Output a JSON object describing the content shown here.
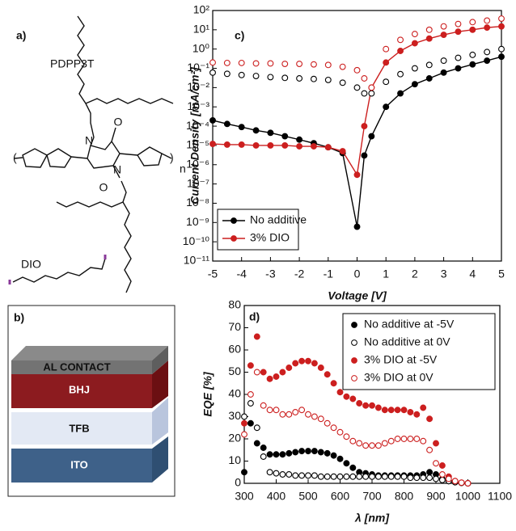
{
  "figure": {
    "panel_a": {
      "label": "a)",
      "name": "PDPP3T",
      "additive": "DIO",
      "atoms": [
        "N",
        "N",
        "O",
        "O",
        "n"
      ]
    },
    "panel_b": {
      "label": "b)",
      "layers": [
        "AL CONTACT",
        "BHJ",
        "TFB",
        "ITO"
      ]
    }
  },
  "chart_data": [
    {
      "type": "line",
      "panel_label": "c)",
      "xlabel": "Voltage [V]",
      "ylabel": "Current Density [mA/cm²]",
      "x": [
        -5,
        -4.5,
        -4,
        -3.5,
        -3,
        -2.5,
        -2,
        -1.5,
        -1,
        -0.5,
        0,
        0.25,
        0.5,
        1,
        1.5,
        2,
        2.5,
        3,
        3.5,
        4,
        4.5,
        5
      ],
      "xlim": [
        -5,
        5
      ],
      "xticks": [
        -5,
        -4,
        -3,
        -2,
        -1,
        0,
        1,
        2,
        3,
        4,
        5
      ],
      "yscale": "log",
      "ylim": [
        1e-11,
        100
      ],
      "yticks": [
        {
          "value": 1e-11,
          "label": "10⁻¹¹"
        },
        {
          "value": 1e-10,
          "label": "10⁻¹⁰"
        },
        {
          "value": 1e-09,
          "label": "10⁻⁹"
        },
        {
          "value": 1e-08,
          "label": "10⁻⁸"
        },
        {
          "value": 1e-07,
          "label": "10⁻⁷"
        },
        {
          "value": 1e-06,
          "label": "10⁻⁶"
        },
        {
          "value": 1e-05,
          "label": "10⁻⁵"
        },
        {
          "value": 0.0001,
          "label": "10⁻⁴"
        },
        {
          "value": 0.001,
          "label": "10⁻³"
        },
        {
          "value": 0.01,
          "label": "10⁻²"
        },
        {
          "value": 0.1,
          "label": "10⁻¹"
        },
        {
          "value": 1,
          "label": "10⁰"
        },
        {
          "value": 10,
          "label": "10¹"
        },
        {
          "value": 100,
          "label": "10²"
        }
      ],
      "legend": "lower left",
      "series": [
        {
          "name": "No additive",
          "color": "#000000",
          "marker": "filled",
          "line": true,
          "values": [
            0.0002,
            0.00013,
            9e-05,
            6e-05,
            4.5e-05,
            3e-05,
            2e-05,
            1.3e-05,
            8e-06,
            4e-06,
            6e-10,
            3e-06,
            3e-05,
            0.001,
            0.005,
            0.015,
            0.03,
            0.06,
            0.1,
            0.16,
            0.25,
            0.4
          ]
        },
        {
          "name": "3% DIO",
          "color": "#cc1f1f",
          "marker": "filled",
          "line": true,
          "values": [
            1.2e-05,
            1.1e-05,
            1.1e-05,
            1e-05,
            1e-05,
            1e-05,
            9e-06,
            9e-06,
            8e-06,
            5e-06,
            3e-07,
            0.0001,
            0.01,
            0.2,
            0.8,
            2,
            3.5,
            5.5,
            8,
            10,
            13,
            15
          ]
        },
        {
          "color": "#000000",
          "marker": "open",
          "values": [
            0.06,
            0.052,
            0.045,
            0.04,
            0.035,
            0.032,
            0.03,
            0.028,
            0.025,
            0.018,
            0.01,
            0.005,
            0.005,
            0.02,
            0.05,
            0.1,
            0.15,
            0.25,
            0.35,
            0.5,
            0.7,
            1
          ]
        },
        {
          "color": "#cc1f1f",
          "marker": "open",
          "values": [
            0.2,
            0.19,
            0.19,
            0.18,
            0.18,
            0.17,
            0.17,
            0.16,
            0.15,
            0.12,
            0.08,
            0.03,
            0.01,
            1,
            3,
            6,
            10,
            15,
            20,
            25,
            30,
            38
          ]
        }
      ]
    },
    {
      "type": "scatter",
      "panel_label": "d)",
      "xlabel": "λ [nm]",
      "ylabel": "EQE [%]",
      "x": [
        300,
        320,
        340,
        360,
        380,
        400,
        420,
        440,
        460,
        480,
        500,
        520,
        540,
        560,
        580,
        600,
        620,
        640,
        660,
        680,
        700,
        720,
        740,
        760,
        780,
        800,
        820,
        840,
        860,
        880,
        900,
        920,
        940,
        960,
        980,
        1000
      ],
      "xlim": [
        300,
        1100
      ],
      "xticks": [
        300,
        400,
        500,
        600,
        700,
        800,
        900,
        1000,
        1100
      ],
      "ylim": [
        0,
        80
      ],
      "yticks": [
        0,
        10,
        20,
        30,
        40,
        50,
        60,
        70,
        80
      ],
      "legend": "upper right",
      "series": [
        {
          "name": "No additive at -5V",
          "color": "#000000",
          "marker": "filled",
          "values": [
            5,
            27,
            18,
            16,
            13,
            13,
            13,
            13.5,
            14,
            14.5,
            14.5,
            14.5,
            14,
            13.5,
            12.5,
            11,
            9,
            7,
            5,
            4.5,
            4,
            3.5,
            3.5,
            3.5,
            3.5,
            3.5,
            3.5,
            3.5,
            4,
            5,
            4,
            2,
            1,
            0.5,
            0.2,
            0
          ]
        },
        {
          "name": "No additive at 0V",
          "color": "#000000",
          "marker": "open",
          "values": [
            30,
            36,
            25,
            12,
            5,
            4.5,
            4,
            4,
            3.5,
            3.5,
            3.5,
            3.5,
            3,
            3,
            3,
            3,
            3,
            3,
            3,
            3,
            3,
            3,
            3,
            3,
            3,
            3,
            2.5,
            2.5,
            2.5,
            2.5,
            2,
            1.5,
            1,
            0.5,
            0.2,
            0
          ]
        },
        {
          "name": "3% DIO at -5V",
          "color": "#cc1f1f",
          "marker": "filled",
          "values": [
            27,
            53,
            66,
            50,
            47,
            48,
            50,
            52,
            54,
            55,
            55,
            54,
            52,
            49,
            45,
            41,
            39,
            38,
            36,
            35,
            35,
            34,
            33,
            33,
            33,
            33,
            32,
            31,
            34,
            29,
            18,
            8,
            3,
            1,
            0.3,
            0
          ]
        },
        {
          "name": "3% DIO at 0V",
          "color": "#cc1f1f",
          "marker": "open",
          "values": [
            22,
            40,
            50,
            35,
            33,
            33,
            31,
            31,
            32,
            33,
            31,
            30,
            29,
            27,
            25,
            23,
            21,
            19,
            18,
            17,
            17,
            17,
            18,
            19,
            20,
            20,
            20,
            20,
            19,
            15,
            9,
            4,
            2,
            1,
            0.3,
            0
          ]
        }
      ]
    }
  ]
}
